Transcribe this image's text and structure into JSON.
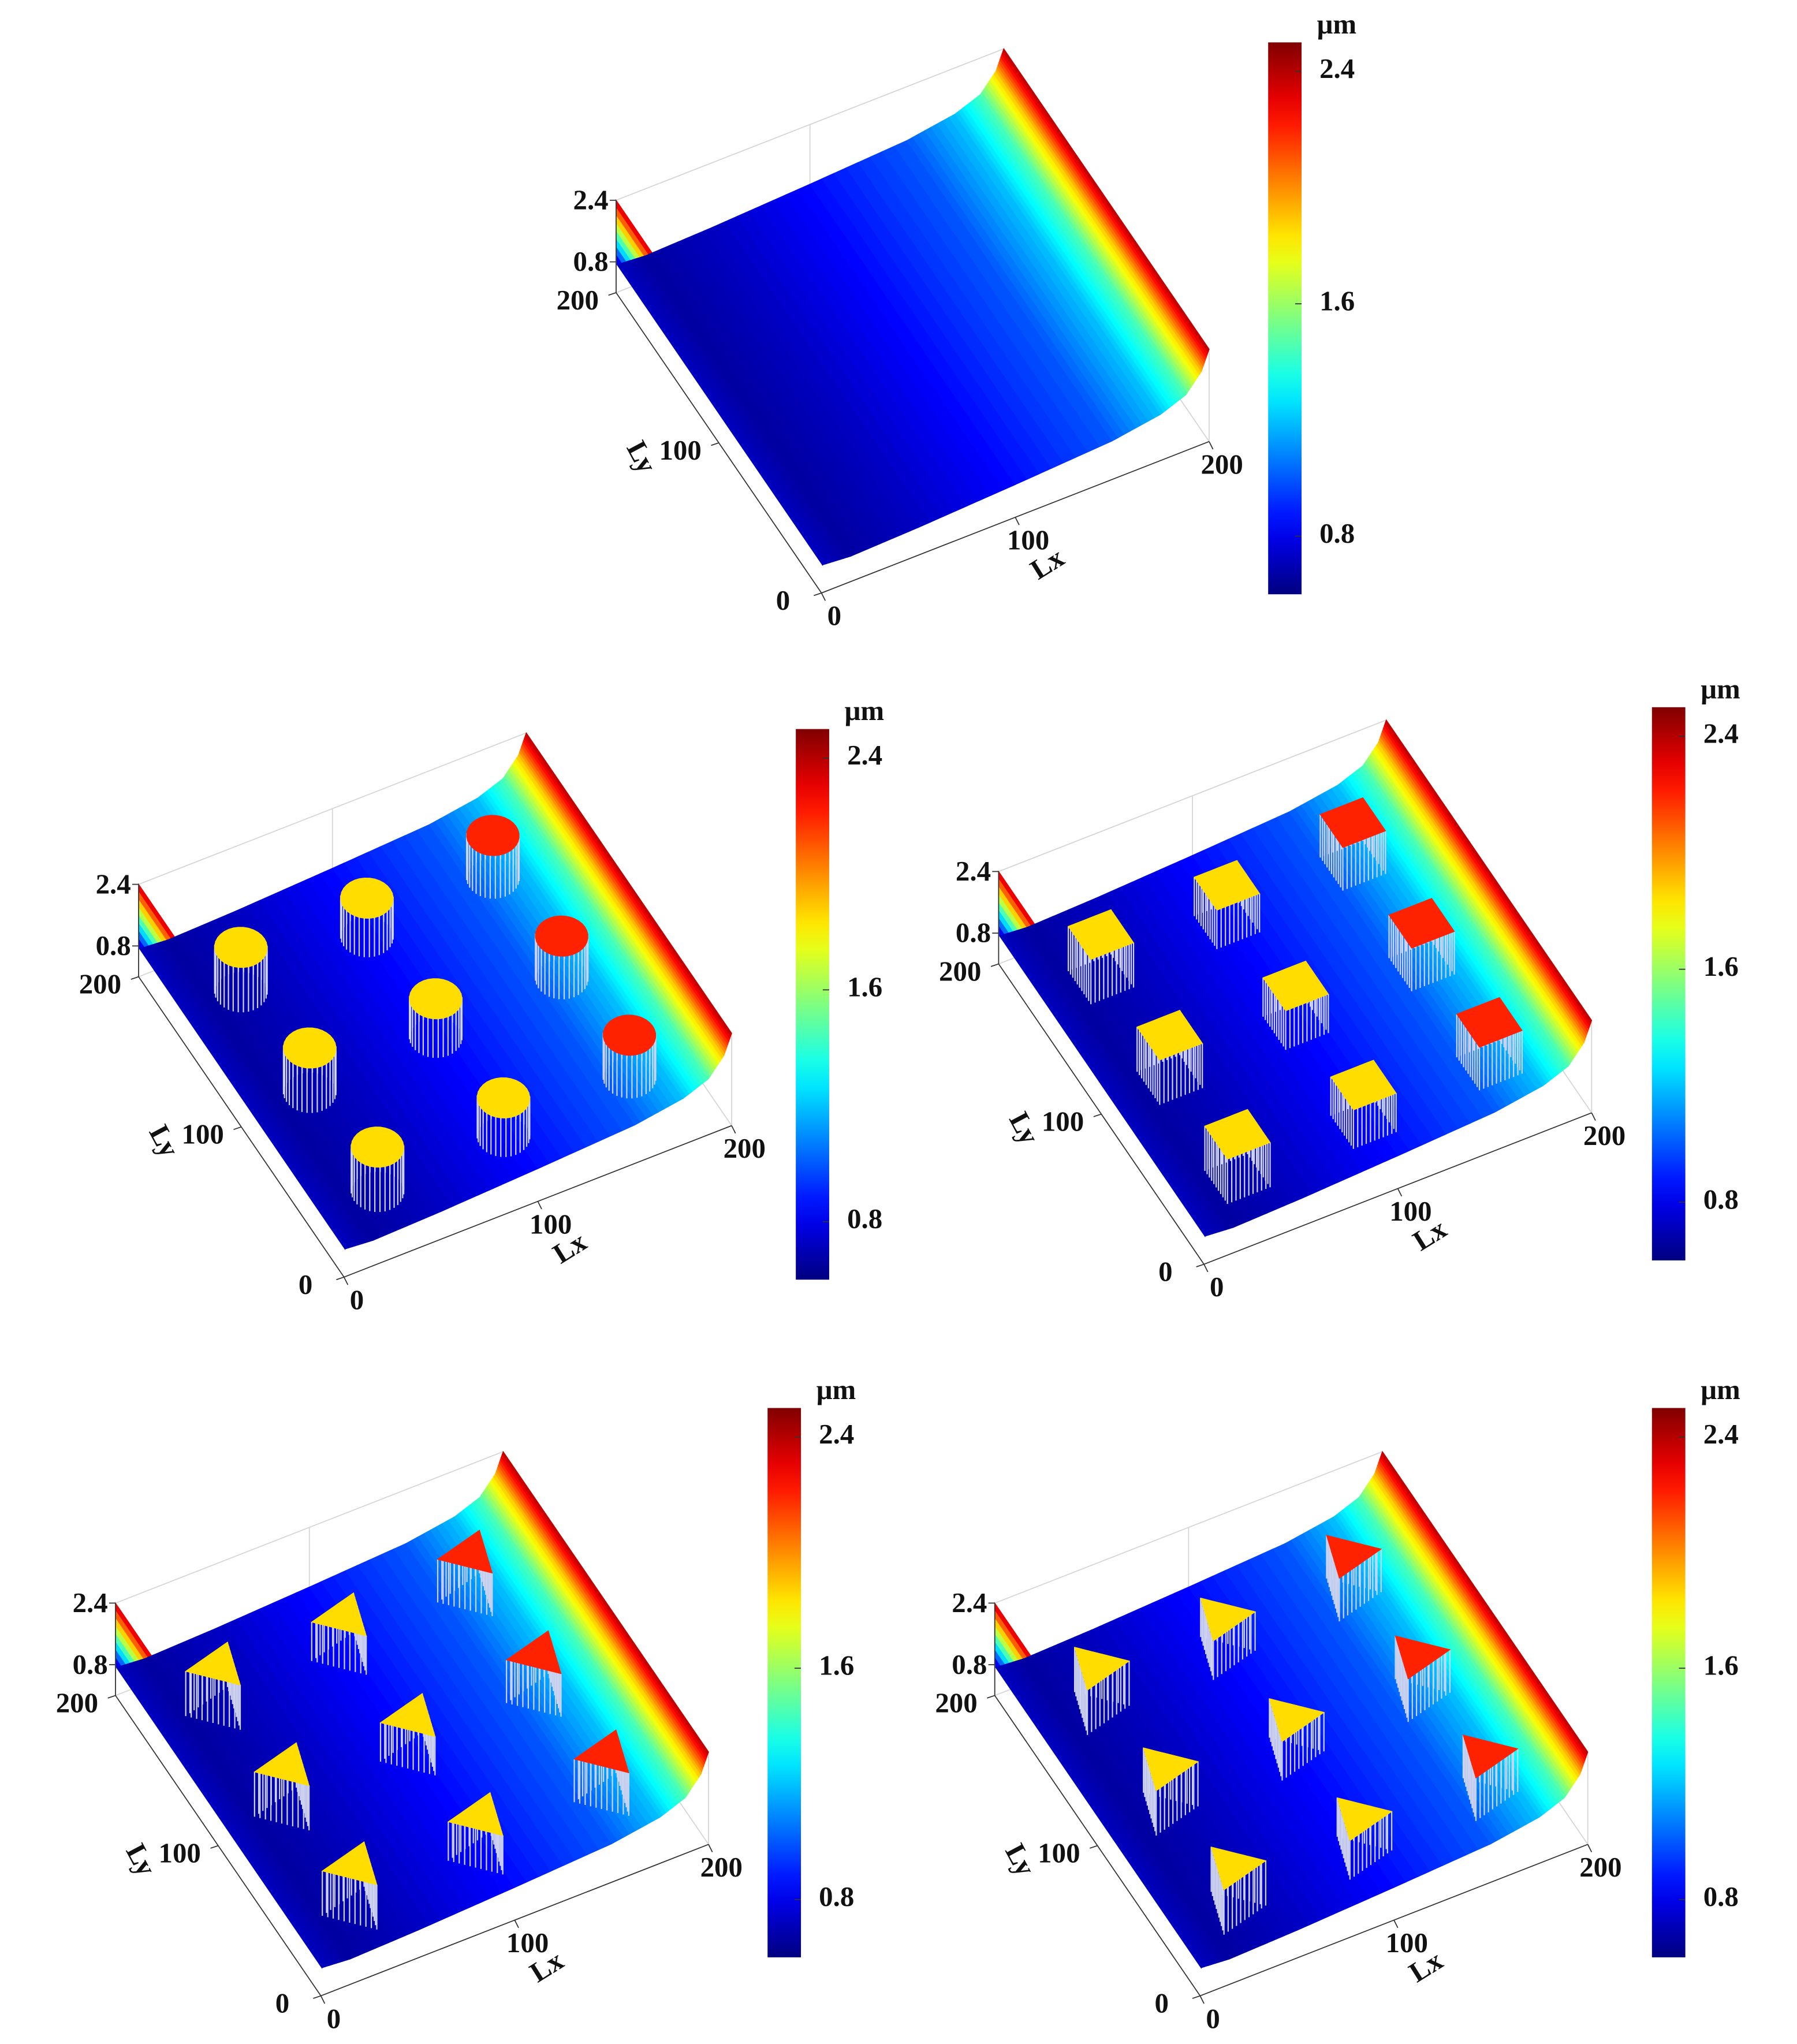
{
  "chart_data": [
    {
      "type": "surface",
      "xlabel": "Lx",
      "ylabel": "Ly",
      "xlim": [
        0,
        200
      ],
      "xticks": [
        0,
        100,
        200
      ],
      "ylim": [
        0,
        200
      ],
      "yticks": [
        0,
        100,
        200
      ],
      "zlim": [
        0,
        2.4
      ],
      "zticks": [
        0.8,
        2.4
      ],
      "colorbar": {
        "label": "μm",
        "clim": [
          0.6,
          2.5
        ],
        "ticks": [
          0.8,
          1.6,
          2.4
        ]
      },
      "surface_x": [
        0,
        0.5,
        15,
        50,
        100,
        150,
        175,
        188,
        196,
        200
      ],
      "surface_z": [
        2.4,
        0.72,
        0.66,
        0.72,
        0.85,
        1.0,
        1.2,
        1.45,
        1.9,
        2.4
      ]
    },
    {
      "type": "surface",
      "xlabel": "Lx",
      "ylabel": "Ly",
      "xlim": [
        0,
        200
      ],
      "xticks": [
        0,
        100,
        200
      ],
      "ylim": [
        0,
        200
      ],
      "yticks": [
        0,
        100,
        200
      ],
      "zlim": [
        0,
        2.4
      ],
      "zticks": [
        0.8,
        2.4
      ],
      "colorbar": {
        "label": "μm",
        "clim": [
          0.6,
          2.5
        ],
        "ticks": [
          0.8,
          1.6,
          2.4
        ]
      },
      "surface_x": [
        0,
        0.5,
        15,
        50,
        100,
        150,
        175,
        188,
        196,
        200
      ],
      "surface_z": [
        2.4,
        0.72,
        0.66,
        0.72,
        0.85,
        1.0,
        1.2,
        1.45,
        1.9,
        2.4
      ],
      "feature_shape": "circle",
      "pillar_x": [
        30,
        95,
        160,
        30,
        95,
        160,
        30,
        95,
        160
      ],
      "pillar_y": [
        157,
        157,
        157,
        90,
        90,
        90,
        24,
        24,
        24
      ],
      "pillar_z": [
        1.85,
        1.85,
        2.2,
        1.85,
        1.85,
        2.2,
        1.85,
        1.85,
        2.2
      ]
    },
    {
      "type": "surface",
      "xlabel": "Lx",
      "ylabel": "Ly",
      "xlim": [
        0,
        200
      ],
      "xticks": [
        0,
        100,
        200
      ],
      "ylim": [
        0,
        200
      ],
      "yticks": [
        0,
        100,
        200
      ],
      "zlim": [
        0,
        2.4
      ],
      "zticks": [
        0.8,
        2.4
      ],
      "colorbar": {
        "label": "μm",
        "clim": [
          0.6,
          2.5
        ],
        "ticks": [
          0.8,
          1.6,
          2.4
        ]
      },
      "surface_x": [
        0,
        0.5,
        15,
        50,
        100,
        150,
        175,
        188,
        196,
        200
      ],
      "surface_z": [
        2.4,
        0.72,
        0.66,
        0.72,
        0.85,
        1.0,
        1.2,
        1.45,
        1.9,
        2.4
      ],
      "feature_shape": "square",
      "pillar_x": [
        30,
        95,
        160,
        30,
        95,
        160,
        30,
        95,
        160
      ],
      "pillar_y": [
        157,
        157,
        157,
        90,
        90,
        90,
        24,
        24,
        24
      ],
      "pillar_z": [
        1.85,
        1.85,
        2.2,
        1.85,
        1.85,
        2.2,
        1.85,
        1.85,
        2.2
      ]
    },
    {
      "type": "surface",
      "xlabel": "Lx",
      "ylabel": "Ly",
      "xlim": [
        0,
        200
      ],
      "xticks": [
        0,
        100,
        200
      ],
      "ylim": [
        0,
        200
      ],
      "yticks": [
        0,
        100,
        200
      ],
      "zlim": [
        0,
        2.4
      ],
      "zticks": [
        0.8,
        2.4
      ],
      "colorbar": {
        "label": "μm",
        "clim": [
          0.6,
          2.5
        ],
        "ticks": [
          0.8,
          1.6,
          2.4
        ]
      },
      "surface_x": [
        0,
        0.5,
        15,
        50,
        100,
        150,
        175,
        188,
        196,
        200
      ],
      "surface_z": [
        2.4,
        0.72,
        0.66,
        0.72,
        0.85,
        1.0,
        1.2,
        1.45,
        1.9,
        2.4
      ],
      "feature_shape": "triangle-up",
      "pillar_x": [
        30,
        95,
        160,
        30,
        95,
        160,
        30,
        95,
        160
      ],
      "pillar_y": [
        157,
        157,
        157,
        90,
        90,
        90,
        24,
        24,
        24
      ],
      "pillar_z": [
        1.85,
        1.85,
        2.2,
        1.85,
        1.85,
        2.2,
        1.85,
        1.85,
        2.2
      ]
    },
    {
      "type": "surface",
      "xlabel": "Lx",
      "ylabel": "Ly",
      "xlim": [
        0,
        200
      ],
      "xticks": [
        0,
        100,
        200
      ],
      "ylim": [
        0,
        200
      ],
      "yticks": [
        0,
        100,
        200
      ],
      "zlim": [
        0,
        2.4
      ],
      "zticks": [
        0.8,
        2.4
      ],
      "colorbar": {
        "label": "μm",
        "clim": [
          0.6,
          2.5
        ],
        "ticks": [
          0.8,
          1.6,
          2.4
        ]
      },
      "surface_x": [
        0,
        0.5,
        15,
        50,
        100,
        150,
        175,
        188,
        196,
        200
      ],
      "surface_z": [
        2.4,
        0.72,
        0.66,
        0.72,
        0.85,
        1.0,
        1.2,
        1.45,
        1.9,
        2.4
      ],
      "feature_shape": "triangle-right",
      "pillar_x": [
        30,
        95,
        160,
        30,
        95,
        160,
        30,
        95,
        160
      ],
      "pillar_y": [
        157,
        157,
        157,
        90,
        90,
        90,
        24,
        24,
        24
      ],
      "pillar_z": [
        1.85,
        1.85,
        2.2,
        1.85,
        1.85,
        2.2,
        1.85,
        1.85,
        2.2
      ]
    }
  ]
}
